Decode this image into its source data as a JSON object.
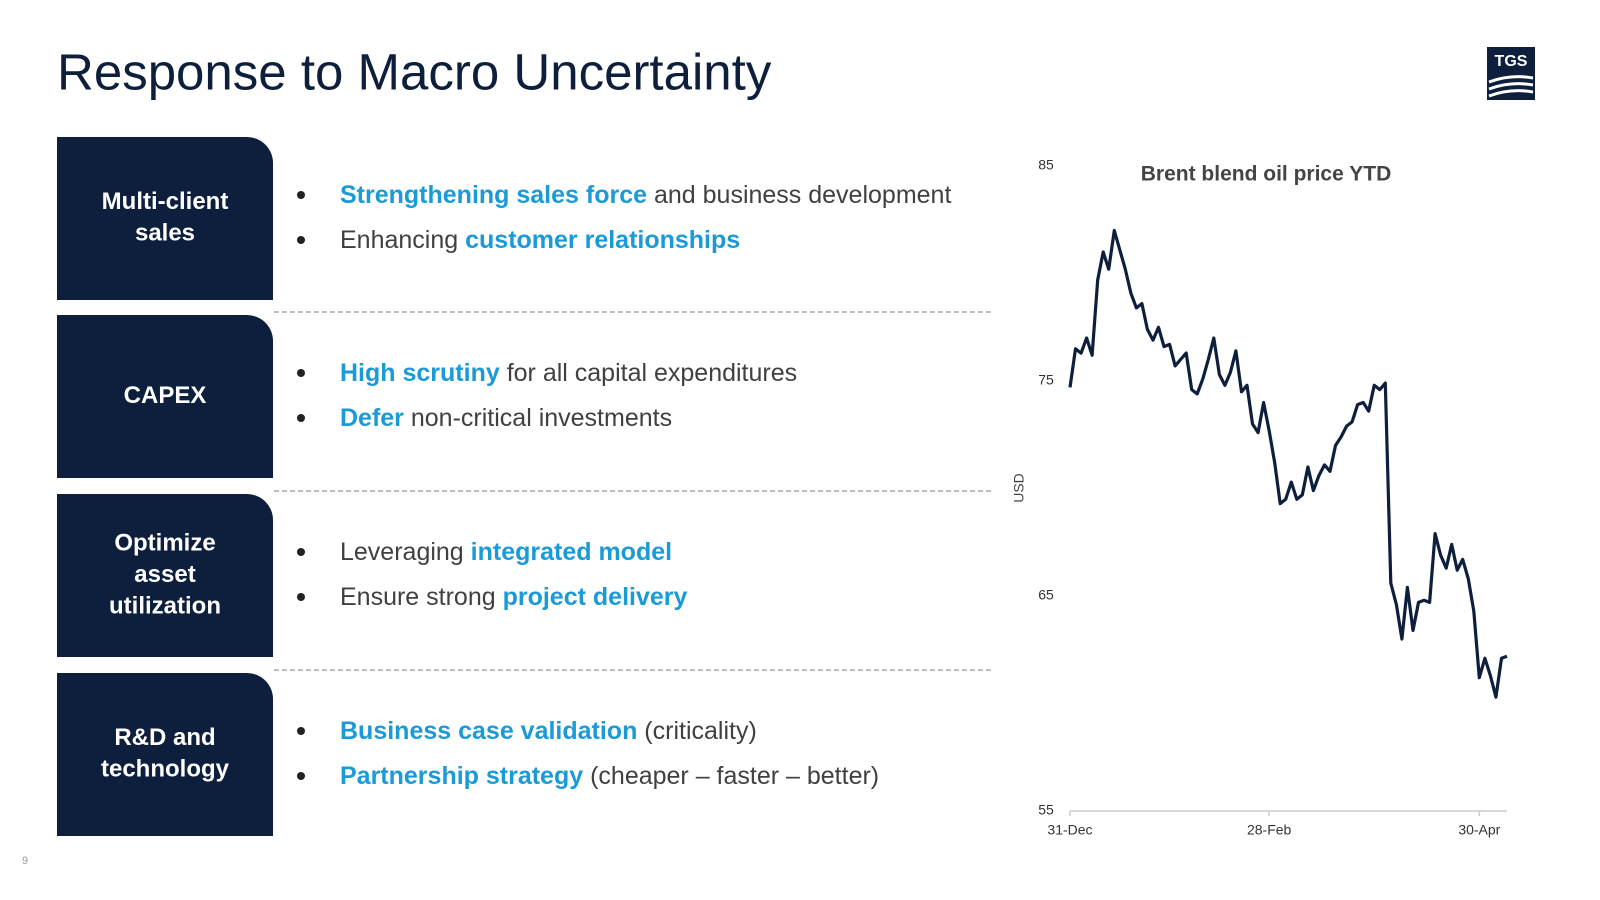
{
  "header": {
    "title": "Response to Macro Uncertainty",
    "logo": "TGS"
  },
  "page_number": "9",
  "sections": [
    {
      "label": [
        "Multi-client",
        "sales"
      ],
      "bullets": [
        [
          {
            "text": "Strengthening sales force",
            "highlight": true
          },
          {
            "text": " and business development",
            "highlight": false
          }
        ],
        [
          {
            "text": "Enhancing ",
            "highlight": false
          },
          {
            "text": "customer relationships",
            "highlight": true
          }
        ]
      ]
    },
    {
      "label": [
        "CAPEX"
      ],
      "bullets": [
        [
          {
            "text": "High scrutiny",
            "highlight": true
          },
          {
            "text": " for all capital expenditures",
            "highlight": false
          }
        ],
        [
          {
            "text": "Defer",
            "highlight": true
          },
          {
            "text": " non-critical investments",
            "highlight": false
          }
        ]
      ]
    },
    {
      "label": [
        "Optimize",
        "asset",
        "utilization"
      ],
      "bullets": [
        [
          {
            "text": "Leveraging ",
            "highlight": false
          },
          {
            "text": "integrated model",
            "highlight": true
          }
        ],
        [
          {
            "text": "Ensure strong ",
            "highlight": false
          },
          {
            "text": "project delivery",
            "highlight": true
          }
        ]
      ]
    },
    {
      "label": [
        "R&D and",
        "technology"
      ],
      "bullets": [
        [
          {
            "text": "Business case validation",
            "highlight": true
          },
          {
            "text": " (criticality)",
            "highlight": false
          }
        ],
        [
          {
            "text": "Partnership strategy",
            "highlight": true
          },
          {
            "text": " (cheaper – faster – better)",
            "highlight": false
          }
        ]
      ]
    }
  ],
  "chart_data": {
    "type": "line",
    "title": "Brent blend oil price YTD",
    "y_label": "USD",
    "color": "#0d1f3c",
    "categories": [
      "31-Dec",
      null,
      null,
      null,
      null,
      null,
      null,
      null,
      null,
      null,
      null,
      null,
      null,
      null,
      null,
      null,
      null,
      null,
      null,
      null,
      null,
      null,
      null,
      null,
      null,
      null,
      null,
      null,
      null,
      null,
      null,
      null,
      null,
      null,
      null,
      null,
      "28-Feb",
      null,
      null,
      null,
      null,
      null,
      null,
      null,
      null,
      null,
      null,
      null,
      null,
      null,
      null,
      null,
      null,
      null,
      null,
      null,
      null,
      null,
      null,
      null,
      null,
      null,
      null,
      null,
      null,
      null,
      null,
      null,
      null,
      null,
      null,
      null,
      null,
      null,
      "30-Apr",
      null,
      null,
      null,
      null,
      null
    ],
    "values": [
      74.7,
      76.5,
      76.3,
      77.0,
      76.2,
      79.7,
      81.0,
      80.2,
      82.0,
      81.1,
      80.2,
      79.1,
      78.4,
      78.6,
      77.4,
      76.9,
      77.5,
      76.6,
      76.7,
      75.7,
      76.0,
      76.3,
      74.6,
      74.4,
      75.1,
      76.0,
      77.0,
      75.3,
      74.8,
      75.4,
      76.4,
      74.5,
      74.8,
      73.0,
      72.6,
      74.0,
      72.7,
      71.2,
      69.3,
      69.5,
      70.3,
      69.5,
      69.7,
      71.0,
      69.9,
      70.6,
      71.1,
      70.8,
      72.0,
      72.4,
      72.9,
      73.1,
      73.9,
      74.0,
      73.6,
      74.8,
      74.6,
      74.9,
      65.6,
      64.6,
      63.0,
      65.4,
      63.4,
      64.7,
      64.8,
      64.7,
      67.9,
      66.9,
      66.3,
      67.4,
      66.2,
      66.7,
      65.8,
      64.3,
      61.2,
      62.1,
      61.3,
      60.3,
      62.1,
      62.2
    ],
    "ylim": [
      55,
      85
    ],
    "yticks": [
      55,
      65,
      75,
      85
    ],
    "grid": false
  }
}
